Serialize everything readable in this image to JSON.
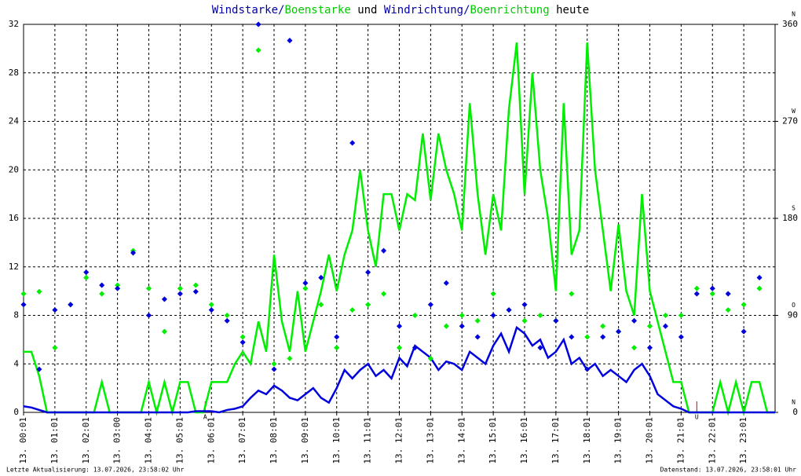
{
  "chart_data": {
    "type": "line",
    "title_parts": [
      {
        "text": "Windstarke/",
        "color": "#0000aa"
      },
      {
        "text": "Boenstarke",
        "color": "#00cc00"
      },
      {
        "text": " und ",
        "color": "#000000"
      },
      {
        "text": "Windrichtung/",
        "color": "#0000aa"
      },
      {
        "text": "Boenrichtung",
        "color": "#00cc00"
      },
      {
        "text": " heute",
        "color": "#000000"
      }
    ],
    "xlim": [
      0,
      24
    ],
    "xticks": [
      {
        "value": 0,
        "label": "13. 00:01"
      },
      {
        "value": 1,
        "label": "13. 01:01"
      },
      {
        "value": 2,
        "label": "13. 02:01"
      },
      {
        "value": 3,
        "label": "13. 03:00"
      },
      {
        "value": 4,
        "label": "13. 04:01"
      },
      {
        "value": 5,
        "label": "13. 05:01"
      },
      {
        "value": 6,
        "label": "13. 06:01"
      },
      {
        "value": 7,
        "label": "13. 07:01"
      },
      {
        "value": 8,
        "label": "13. 08:01"
      },
      {
        "value": 9,
        "label": "13. 09:01"
      },
      {
        "value": 10,
        "label": "13. 10:01"
      },
      {
        "value": 11,
        "label": "13. 11:01"
      },
      {
        "value": 12,
        "label": "13. 12:01"
      },
      {
        "value": 13,
        "label": "13. 13:01"
      },
      {
        "value": 14,
        "label": "13. 14:01"
      },
      {
        "value": 15,
        "label": "13. 15:01"
      },
      {
        "value": 16,
        "label": "13. 16:01"
      },
      {
        "value": 17,
        "label": "13. 17:01"
      },
      {
        "value": 18,
        "label": "13. 18:01"
      },
      {
        "value": 19,
        "label": "13. 19:01"
      },
      {
        "value": 20,
        "label": "13. 20:01"
      },
      {
        "value": 21,
        "label": "13. 21:01"
      },
      {
        "value": 22,
        "label": "13. 22:01"
      },
      {
        "value": 23,
        "label": "13. 23:01"
      }
    ],
    "ylim": [
      0,
      32
    ],
    "yticks": [
      0,
      4,
      8,
      12,
      16,
      20,
      24,
      28,
      32
    ],
    "y2lim": [
      0,
      360
    ],
    "y2ticks": [
      0,
      90,
      180,
      270,
      360
    ],
    "y2tick_directions": [
      "N",
      "O",
      "S",
      "W",
      "N"
    ],
    "grid": true,
    "annotations": [
      {
        "text": "A",
        "x": 5.8,
        "color": "#cc0000"
      },
      {
        "text": "U",
        "x": 21.5,
        "color": "#cc0000"
      }
    ],
    "footer_left": "Letzte Aktualisierung: 13.07.2026, 23:58:02 Uhr",
    "footer_right": "Datenstand: 13.07.2026, 23:58:01 Uhr",
    "series": [
      {
        "name": "Boenstarke",
        "kind": "line",
        "color": "#00ee00",
        "step": 0.25,
        "start": 0,
        "values": [
          5,
          5,
          3,
          0,
          0,
          0,
          0,
          0,
          0,
          0,
          2.5,
          0,
          0,
          0,
          0,
          0,
          2.5,
          0,
          2.5,
          0,
          2.5,
          2.5,
          0,
          0,
          2.5,
          2.5,
          2.5,
          4,
          5,
          4,
          7.5,
          5,
          13,
          7.5,
          5,
          10,
          5,
          7.5,
          10,
          13,
          10,
          13,
          15,
          20,
          15,
          12,
          18,
          18,
          15,
          18,
          17.5,
          23,
          17.5,
          23,
          20,
          18,
          15,
          25.5,
          18,
          13,
          18,
          15,
          25,
          30.5,
          18,
          28,
          20,
          16,
          10,
          25.5,
          13,
          15,
          30.5,
          20,
          15,
          10,
          15.5,
          10,
          8,
          18,
          10,
          7.5,
          5,
          2.5,
          2.5,
          0,
          0,
          0,
          0,
          2.5,
          0,
          2.5,
          0,
          2.5,
          2.5,
          0,
          0
        ]
      },
      {
        "name": "Windstarke",
        "kind": "line",
        "color": "#0000dd",
        "step": 0.25,
        "start": 0,
        "values": [
          0.5,
          0.4,
          0.2,
          0,
          0,
          0,
          0,
          0,
          0,
          0,
          0,
          0,
          0,
          0,
          0,
          0,
          0,
          0,
          0,
          0,
          0,
          0,
          0.1,
          0.1,
          0.1,
          0,
          0.2,
          0.3,
          0.5,
          1.2,
          1.8,
          1.5,
          2.2,
          1.8,
          1.2,
          1,
          1.5,
          2,
          1.2,
          0.8,
          2,
          3.5,
          2.8,
          3.5,
          4,
          3,
          3.5,
          2.8,
          4.5,
          3.8,
          5.5,
          5,
          4.5,
          3.5,
          4.2,
          4,
          3.5,
          5,
          4.5,
          4,
          5.5,
          6.5,
          5,
          7,
          6.5,
          5.5,
          6,
          4.5,
          5,
          6,
          4,
          4.5,
          3.5,
          4,
          3,
          3.5,
          3,
          2.5,
          3.5,
          4,
          3,
          1.5,
          1,
          0.5,
          0.3,
          0,
          0,
          0,
          0,
          0,
          0,
          0,
          0,
          0,
          0,
          0,
          0
        ]
      },
      {
        "name": "Boenrichtung",
        "kind": "scatter",
        "axis": "y2",
        "color": "#00ee00",
        "step": 0.5,
        "start": 0,
        "values": [
          110,
          112,
          60,
          100,
          125,
          110,
          118,
          150,
          115,
          75,
          115,
          118,
          100,
          90,
          70,
          336,
          45,
          50,
          115,
          100,
          60,
          95,
          100,
          110,
          60,
          90,
          50,
          80,
          90,
          85,
          110,
          95,
          85,
          90,
          85,
          110,
          70,
          80,
          75,
          60,
          80,
          90,
          90,
          115,
          110,
          95,
          100,
          115
        ]
      },
      {
        "name": "Windrichtung",
        "kind": "scatter",
        "axis": "y2",
        "color": "#0000dd",
        "step": 0.5,
        "start": 0,
        "values": [
          100,
          40,
          95,
          100,
          130,
          118,
          115,
          148,
          90,
          105,
          110,
          112,
          95,
          85,
          65,
          360,
          40,
          345,
          120,
          125,
          70,
          250,
          130,
          150,
          80,
          60,
          100,
          120,
          80,
          70,
          90,
          95,
          100,
          60,
          85,
          70,
          40,
          70,
          75,
          85,
          60,
          80,
          70,
          110,
          115,
          110,
          75,
          125
        ]
      }
    ]
  }
}
